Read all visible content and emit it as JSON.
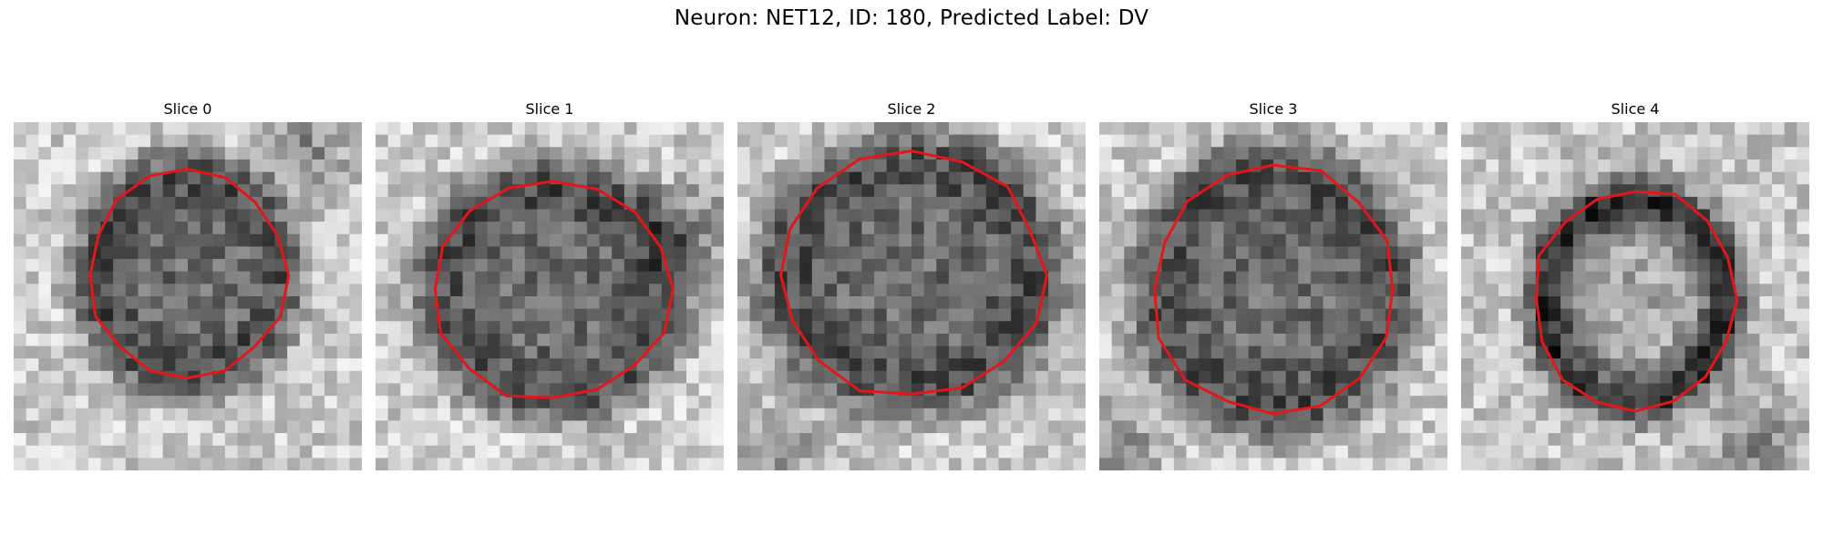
{
  "figure": {
    "title": "Neuron: NET12, ID: 180, Predicted Label: DV"
  },
  "panels": [
    {
      "title": "Slice 0"
    },
    {
      "title": "Slice 1"
    },
    {
      "title": "Slice 2"
    },
    {
      "title": "Slice 3"
    },
    {
      "title": "Slice 4"
    }
  ],
  "style": {
    "contour_color": "#e3171b",
    "image_colormap": "grayscale"
  }
}
